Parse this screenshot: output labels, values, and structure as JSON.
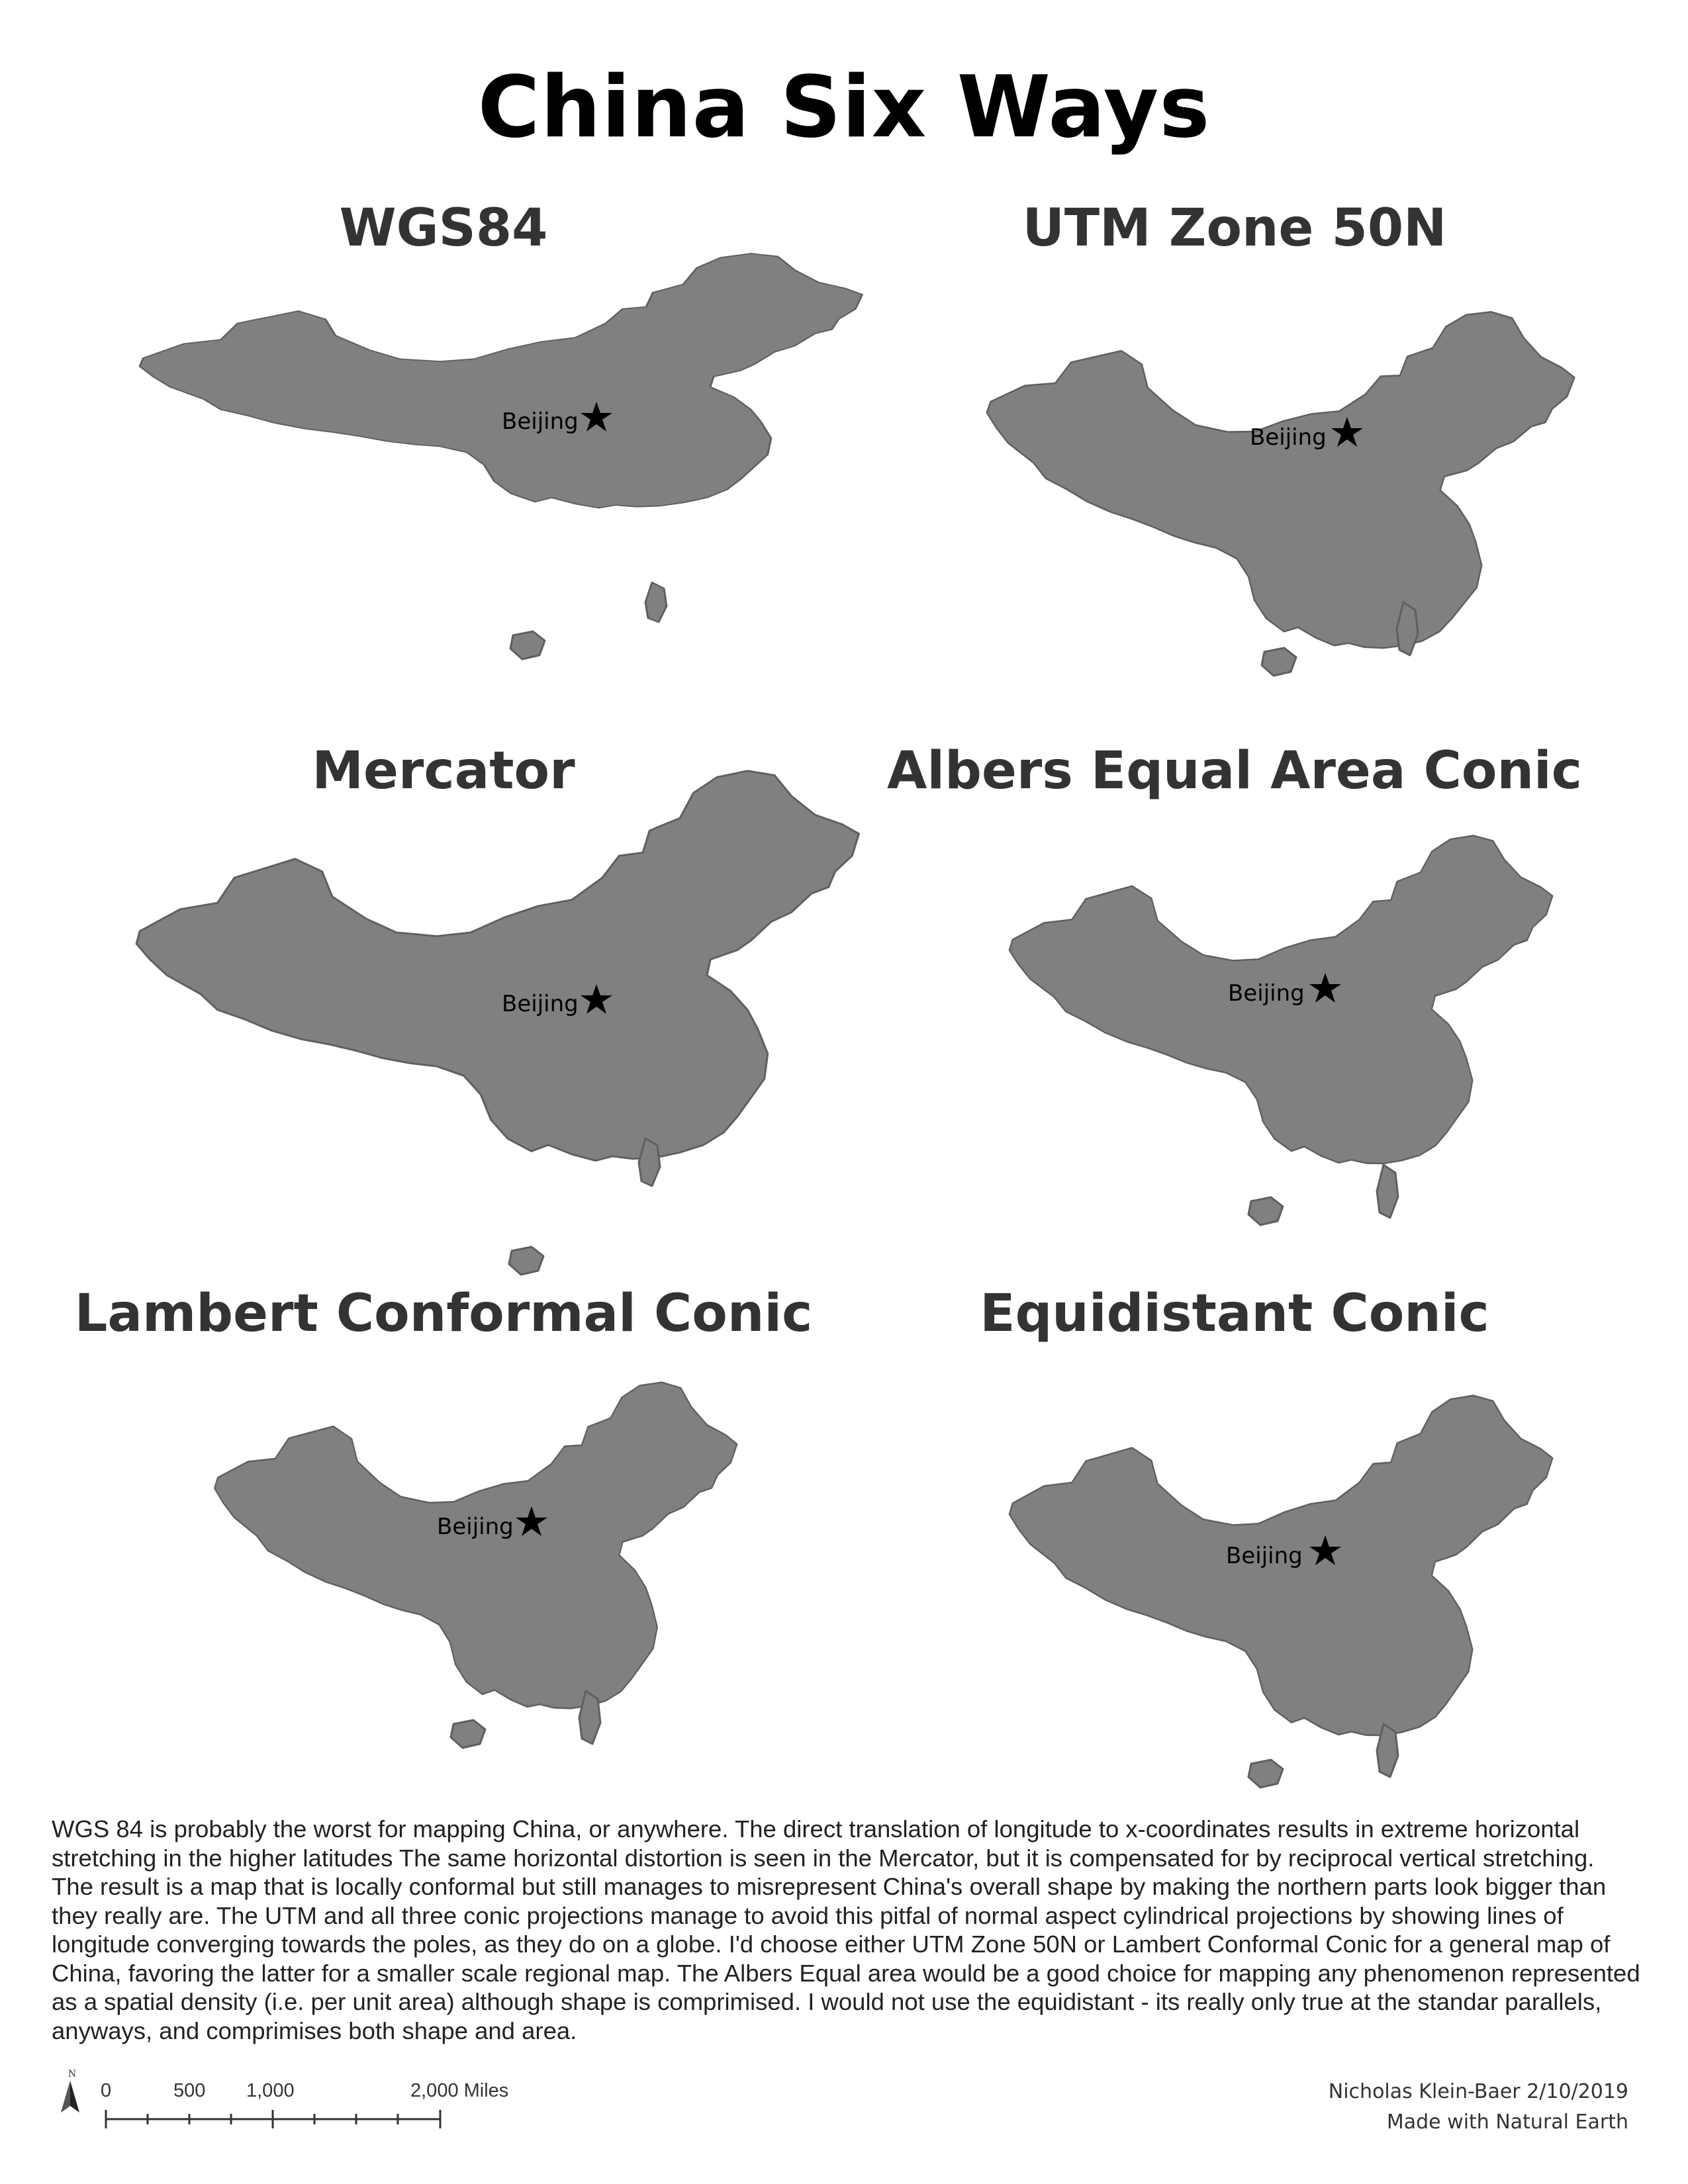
{
  "title": "China Six Ways",
  "city_label": "Beijing",
  "colors": {
    "land": "#808080",
    "land_outline": "#5f5f5f",
    "title": "#000000",
    "panel_title": "#333333"
  },
  "maps": [
    {
      "projection": "WGS84"
    },
    {
      "projection": "UTM Zone 50N"
    },
    {
      "projection": "Mercator"
    },
    {
      "projection": "Albers Equal Area Conic"
    },
    {
      "projection": "Lambert Conformal Conic"
    },
    {
      "projection": "Equidistant Conic"
    }
  ],
  "description": "WGS 84 is probably the worst for mapping China, or anywhere. The direct translation of longitude to x-coordinates results in extreme horizontal stretching in the higher latitudes The same horizontal distortion is seen in the Mercator, but it is compensated for by reciprocal vertical stretching. The result is a map that is locally conformal but still manages to misrepresent China's overall shape by making the northern parts look bigger than they really are. The UTM and all three conic projections manage to avoid this pitfal of normal aspect cylindrical projections by showing lines of longitude converging towards the poles, as they do on a globe. I'd choose either UTM Zone 50N or Lambert Conformal Conic for a general map of China, favoring the latter for a smaller scale regional map. The Albers Equal area would be a good choice for mapping any phenomenon represented as a spatial density (i.e. per unit area) although shape is comprimised. I would not use the equidistant - its really only true at the standar parallels, anyways, and comprimises both shape and area.",
  "scale_bar": {
    "labels": [
      "0",
      "500",
      "1,000",
      "2,000 Miles"
    ],
    "north_letter": "N",
    "north_icon": "north-arrow-icon"
  },
  "credits": {
    "author": "Nicholas Klein-Baer 2/10/2019",
    "source": "Made with Natural Earth"
  }
}
